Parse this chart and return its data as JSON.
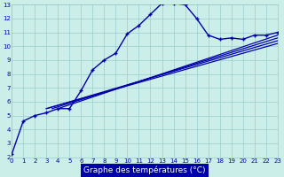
{
  "xlabel": "Graphe des températures (°C)",
  "bg_color": "#cceee8",
  "grid_color": "#99cccc",
  "line_color": "#0000aa",
  "xlim": [
    0,
    23
  ],
  "ylim": [
    2,
    13
  ],
  "xticks": [
    0,
    1,
    2,
    3,
    4,
    5,
    6,
    7,
    8,
    9,
    10,
    11,
    12,
    13,
    14,
    15,
    16,
    17,
    18,
    19,
    20,
    21,
    22,
    23
  ],
  "yticks": [
    2,
    3,
    4,
    5,
    6,
    7,
    8,
    9,
    10,
    11,
    12,
    13
  ],
  "main_x": [
    0,
    1,
    2,
    3,
    4,
    5,
    6,
    7,
    8,
    9,
    10,
    11,
    12,
    13,
    14,
    15,
    16,
    17,
    18,
    19,
    20,
    21,
    22,
    23
  ],
  "main_y": [
    2.2,
    4.6,
    5.0,
    5.2,
    5.5,
    5.5,
    6.8,
    8.3,
    9.0,
    9.5,
    10.9,
    11.5,
    12.3,
    13.1,
    13.1,
    13.0,
    12.0,
    10.8,
    10.5,
    10.6,
    10.5,
    10.8,
    10.8,
    11.0
  ],
  "ref_lines": [
    {
      "x0": 3.0,
      "y0": 5.5,
      "x1": 23,
      "y1": 10.2
    },
    {
      "x0": 3.0,
      "y0": 5.5,
      "x1": 23,
      "y1": 10.4
    },
    {
      "x0": 3.5,
      "y0": 5.5,
      "x1": 23,
      "y1": 10.6
    },
    {
      "x0": 4.0,
      "y0": 5.5,
      "x1": 23,
      "y1": 10.8
    }
  ]
}
